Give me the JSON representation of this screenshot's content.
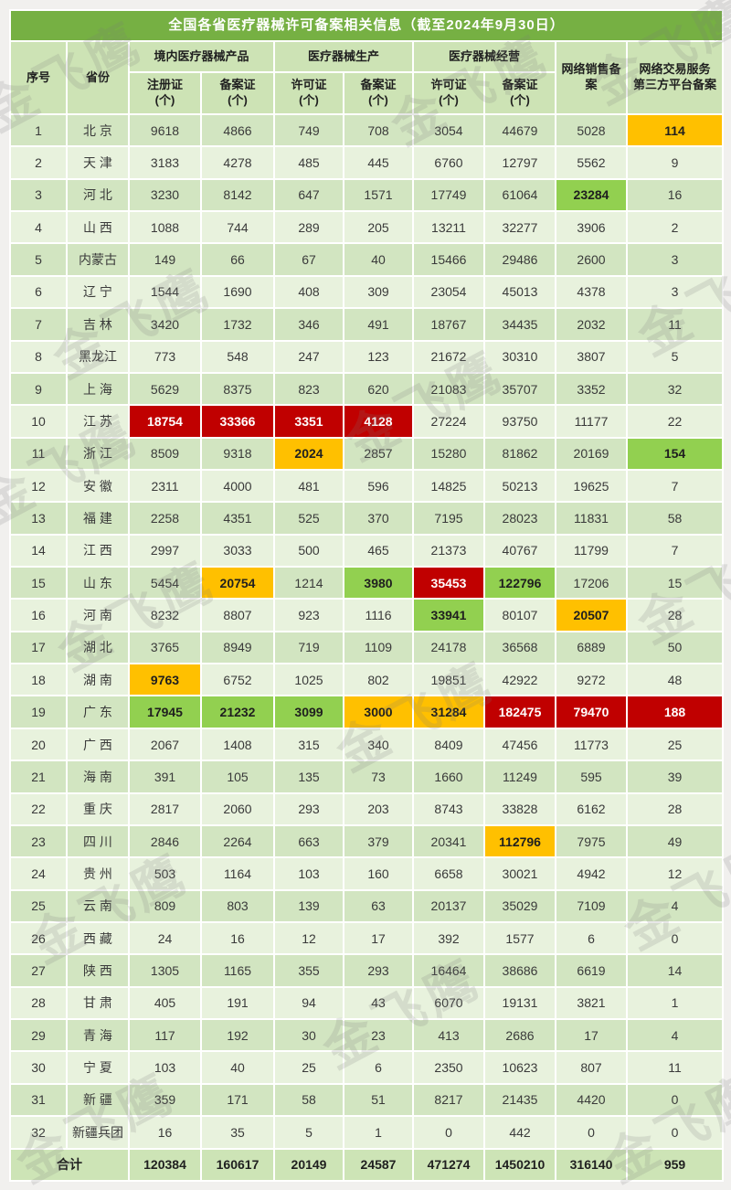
{
  "title": "全国各省医疗器械许可备案相关信息（截至2024年9月30日）",
  "watermark_text": "金飞鹰",
  "columns": {
    "index": "序号",
    "province": "省份",
    "groups": [
      "境内医疗器械产品",
      "医疗器械生产",
      "医疗器械经营"
    ],
    "sub": [
      "注册证\n(个)",
      "备案证\n(个)",
      "许可证\n(个)",
      "备案证\n(个)",
      "许可证\n(个)",
      "备案证\n(个)"
    ],
    "online_sales": "网络销售备案",
    "third_party": "网络交易服务\n第三方平台备案"
  },
  "colors": {
    "title_bg": "#76b043",
    "header_bg": "#cde3b5",
    "row_odd": "#d2e5c1",
    "row_even": "#e8f2dd",
    "total_bg": "#cde4b6",
    "highlight_red": "#c00000",
    "highlight_orange": "#ffc000",
    "highlight_green": "#92d050"
  },
  "rows": [
    {
      "num": "1",
      "province": "北 京",
      "values": [
        "9618",
        "4866",
        "749",
        "708",
        "3054",
        "44679",
        "5028",
        "114"
      ],
      "hl": {
        "7": "orange"
      }
    },
    {
      "num": "2",
      "province": "天 津",
      "values": [
        "3183",
        "4278",
        "485",
        "445",
        "6760",
        "12797",
        "5562",
        "9"
      ],
      "hl": {}
    },
    {
      "num": "3",
      "province": "河 北",
      "values": [
        "3230",
        "8142",
        "647",
        "1571",
        "17749",
        "61064",
        "23284",
        "16"
      ],
      "hl": {
        "6": "green"
      }
    },
    {
      "num": "4",
      "province": "山 西",
      "values": [
        "1088",
        "744",
        "289",
        "205",
        "13211",
        "32277",
        "3906",
        "2"
      ],
      "hl": {}
    },
    {
      "num": "5",
      "province": "内蒙古",
      "values": [
        "149",
        "66",
        "67",
        "40",
        "15466",
        "29486",
        "2600",
        "3"
      ],
      "hl": {}
    },
    {
      "num": "6",
      "province": "辽 宁",
      "values": [
        "1544",
        "1690",
        "408",
        "309",
        "23054",
        "45013",
        "4378",
        "3"
      ],
      "hl": {}
    },
    {
      "num": "7",
      "province": "吉 林",
      "values": [
        "3420",
        "1732",
        "346",
        "491",
        "18767",
        "34435",
        "2032",
        "11"
      ],
      "hl": {}
    },
    {
      "num": "8",
      "province": "黑龙江",
      "values": [
        "773",
        "548",
        "247",
        "123",
        "21672",
        "30310",
        "3807",
        "5"
      ],
      "hl": {}
    },
    {
      "num": "9",
      "province": "上 海",
      "values": [
        "5629",
        "8375",
        "823",
        "620",
        "21083",
        "35707",
        "3352",
        "32"
      ],
      "hl": {}
    },
    {
      "num": "10",
      "province": "江 苏",
      "values": [
        "18754",
        "33366",
        "3351",
        "4128",
        "27224",
        "93750",
        "11177",
        "22"
      ],
      "hl": {
        "0": "red",
        "1": "red",
        "2": "red",
        "3": "red"
      }
    },
    {
      "num": "11",
      "province": "浙 江",
      "values": [
        "8509",
        "9318",
        "2024",
        "2857",
        "15280",
        "81862",
        "20169",
        "154"
      ],
      "hl": {
        "2": "orange",
        "7": "green"
      }
    },
    {
      "num": "12",
      "province": "安 徽",
      "values": [
        "2311",
        "4000",
        "481",
        "596",
        "14825",
        "50213",
        "19625",
        "7"
      ],
      "hl": {}
    },
    {
      "num": "13",
      "province": "福 建",
      "values": [
        "2258",
        "4351",
        "525",
        "370",
        "7195",
        "28023",
        "11831",
        "58"
      ],
      "hl": {}
    },
    {
      "num": "14",
      "province": "江 西",
      "values": [
        "2997",
        "3033",
        "500",
        "465",
        "21373",
        "40767",
        "11799",
        "7"
      ],
      "hl": {}
    },
    {
      "num": "15",
      "province": "山 东",
      "values": [
        "5454",
        "20754",
        "1214",
        "3980",
        "35453",
        "122796",
        "17206",
        "15"
      ],
      "hl": {
        "1": "orange",
        "3": "green",
        "4": "red",
        "5": "green"
      }
    },
    {
      "num": "16",
      "province": "河 南",
      "values": [
        "8232",
        "8807",
        "923",
        "1116",
        "33941",
        "80107",
        "20507",
        "28"
      ],
      "hl": {
        "4": "green",
        "6": "orange"
      }
    },
    {
      "num": "17",
      "province": "湖 北",
      "values": [
        "3765",
        "8949",
        "719",
        "1109",
        "24178",
        "36568",
        "6889",
        "50"
      ],
      "hl": {}
    },
    {
      "num": "18",
      "province": "湖 南",
      "values": [
        "9763",
        "6752",
        "1025",
        "802",
        "19851",
        "42922",
        "9272",
        "48"
      ],
      "hl": {
        "0": "orange"
      }
    },
    {
      "num": "19",
      "province": "广 东",
      "values": [
        "17945",
        "21232",
        "3099",
        "3000",
        "31284",
        "182475",
        "79470",
        "188"
      ],
      "hl": {
        "0": "green",
        "1": "green",
        "2": "green",
        "3": "orange",
        "4": "orange",
        "5": "red",
        "6": "red",
        "7": "red"
      }
    },
    {
      "num": "20",
      "province": "广 西",
      "values": [
        "2067",
        "1408",
        "315",
        "340",
        "8409",
        "47456",
        "11773",
        "25"
      ],
      "hl": {}
    },
    {
      "num": "21",
      "province": "海 南",
      "values": [
        "391",
        "105",
        "135",
        "73",
        "1660",
        "11249",
        "595",
        "39"
      ],
      "hl": {}
    },
    {
      "num": "22",
      "province": "重 庆",
      "values": [
        "2817",
        "2060",
        "293",
        "203",
        "8743",
        "33828",
        "6162",
        "28"
      ],
      "hl": {}
    },
    {
      "num": "23",
      "province": "四 川",
      "values": [
        "2846",
        "2264",
        "663",
        "379",
        "20341",
        "112796",
        "7975",
        "49"
      ],
      "hl": {
        "5": "orange"
      }
    },
    {
      "num": "24",
      "province": "贵 州",
      "values": [
        "503",
        "1164",
        "103",
        "160",
        "6658",
        "30021",
        "4942",
        "12"
      ],
      "hl": {}
    },
    {
      "num": "25",
      "province": "云 南",
      "values": [
        "809",
        "803",
        "139",
        "63",
        "20137",
        "35029",
        "7109",
        "4"
      ],
      "hl": {}
    },
    {
      "num": "26",
      "province": "西 藏",
      "values": [
        "24",
        "16",
        "12",
        "17",
        "392",
        "1577",
        "6",
        "0"
      ],
      "hl": {}
    },
    {
      "num": "27",
      "province": "陕 西",
      "values": [
        "1305",
        "1165",
        "355",
        "293",
        "16464",
        "38686",
        "6619",
        "14"
      ],
      "hl": {}
    },
    {
      "num": "28",
      "province": "甘 肃",
      "values": [
        "405",
        "191",
        "94",
        "43",
        "6070",
        "19131",
        "3821",
        "1"
      ],
      "hl": {}
    },
    {
      "num": "29",
      "province": "青 海",
      "values": [
        "117",
        "192",
        "30",
        "23",
        "413",
        "2686",
        "17",
        "4"
      ],
      "hl": {}
    },
    {
      "num": "30",
      "province": "宁 夏",
      "values": [
        "103",
        "40",
        "25",
        "6",
        "2350",
        "10623",
        "807",
        "11"
      ],
      "hl": {}
    },
    {
      "num": "31",
      "province": "新 疆",
      "values": [
        "359",
        "171",
        "58",
        "51",
        "8217",
        "21435",
        "4420",
        "0"
      ],
      "hl": {}
    },
    {
      "num": "32",
      "province": "新疆兵团",
      "values": [
        "16",
        "35",
        "5",
        "1",
        "0",
        "442",
        "0",
        "0"
      ],
      "hl": {}
    }
  ],
  "total": {
    "label": "合计",
    "values": [
      "120384",
      "160617",
      "20149",
      "24587",
      "471274",
      "1450210",
      "316140",
      "959"
    ]
  }
}
